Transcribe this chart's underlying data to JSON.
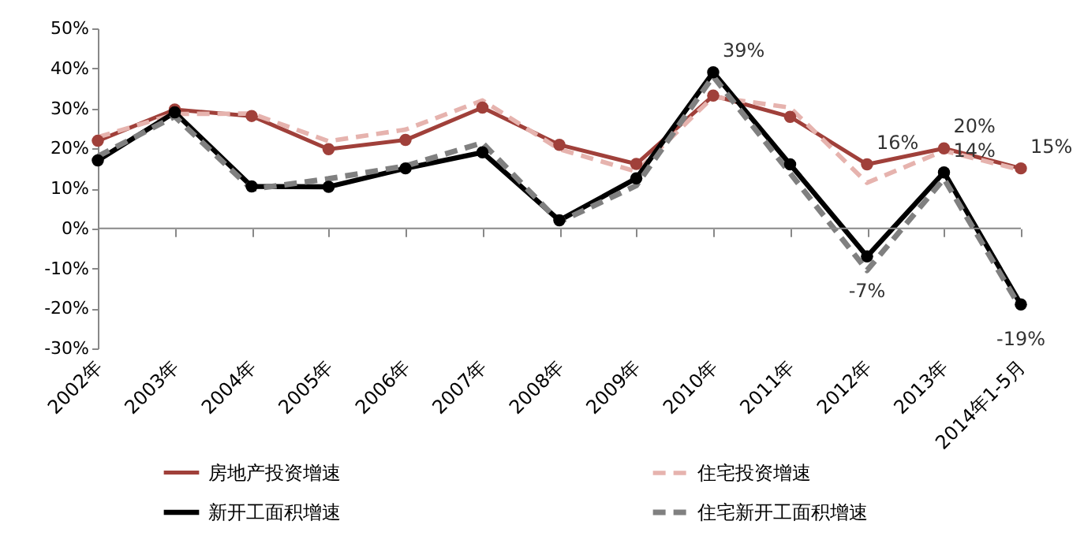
{
  "chart_data": {
    "type": "line",
    "categories": [
      "2002年",
      "2003年",
      "2004年",
      "2005年",
      "2006年",
      "2007年",
      "2008年",
      "2009年",
      "2010年",
      "2011年",
      "2012年",
      "2013年",
      "2014年1-5月"
    ],
    "series": [
      {
        "name": "房地产投资增速",
        "color": "#a0403a",
        "marker": "circle",
        "line_style": "solid",
        "values": [
          21.9,
          29.7,
          28.1,
          19.8,
          22.1,
          30.2,
          20.9,
          16.1,
          33.2,
          27.9,
          16,
          20,
          15
        ],
        "value_labels": [
          null,
          null,
          null,
          null,
          null,
          null,
          null,
          null,
          null,
          null,
          "16%",
          "20%",
          "15%"
        ]
      },
      {
        "name": "住宅投资增速",
        "color": "#e6b3ae",
        "marker": "none",
        "line_style": "dashed",
        "values": [
          22.8,
          28.6,
          28.7,
          21.8,
          24.7,
          32.0,
          19.8,
          14.2,
          32.9,
          30.2,
          11.4,
          19.4,
          14.6
        ]
      },
      {
        "name": "新开工面积增速",
        "color": "#000000",
        "marker": "circle",
        "line_style": "solid",
        "values": [
          17,
          29,
          10.5,
          10.4,
          15,
          19,
          2,
          12.5,
          39,
          16,
          -7,
          14,
          -19
        ],
        "value_labels": [
          null,
          null,
          null,
          null,
          null,
          null,
          null,
          null,
          "39%",
          null,
          "-7%",
          "14%",
          "-19%"
        ]
      },
      {
        "name": "住宅新开工面积增速",
        "color": "#808080",
        "marker": "none",
        "line_style": "dashed",
        "values": [
          18,
          28,
          9.8,
          12.4,
          15.6,
          21.4,
          1.6,
          10.7,
          38,
          13.8,
          -10.5,
          12.4,
          -20
        ]
      }
    ],
    "ylim": [
      -30,
      50
    ],
    "yticks": [
      {
        "value": -30,
        "label": "-30%"
      },
      {
        "value": -20,
        "label": "-20%"
      },
      {
        "value": -10,
        "label": "-10%"
      },
      {
        "value": 0,
        "label": "0%"
      },
      {
        "value": 10,
        "label": "10%"
      },
      {
        "value": 20,
        "label": "20%"
      },
      {
        "value": 30,
        "label": "30%"
      },
      {
        "value": 40,
        "label": "40%"
      },
      {
        "value": 50,
        "label": "50%"
      }
    ],
    "grid": false,
    "ref_lines": [
      {
        "axis": "y",
        "value": 0,
        "color": "#888888"
      }
    ],
    "legend": "bottom"
  }
}
